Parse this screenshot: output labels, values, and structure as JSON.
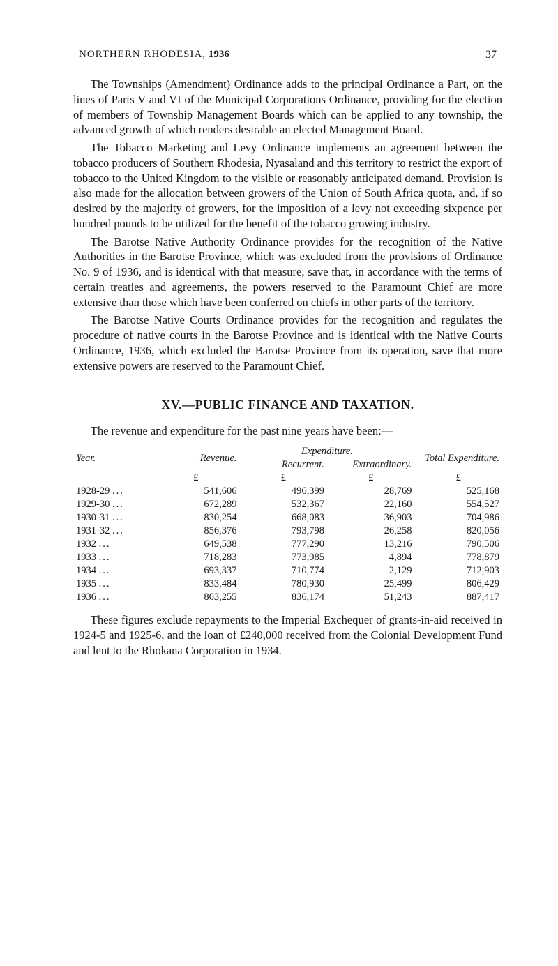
{
  "header": {
    "running_title_caps": "NORTHERN RHODESIA,",
    "running_year": "1936",
    "page_number": "37"
  },
  "paragraphs": {
    "p1": "The Townships (Amendment) Ordinance adds to the principal Ordinance a Part, on the lines of Parts V and VI of the Municipal Corporations Ordinance, providing for the election of members of Township Management Boards which can be applied to any township, the advanced growth of which renders desirable an elected Management Board.",
    "p2": "The Tobacco Marketing and Levy Ordinance implements an agreement between the tobacco producers of Southern Rhodesia, Nyasaland and this territory to restrict the export of tobacco to the United Kingdom to the visible or reasonably anticipated demand. Provision is also made for the allocation between growers of the Union of South Africa quota, and, if so desired by the majority of growers, for the imposition of a levy not exceeding sixpence per hundred pounds to be utilized for the benefit of the tobacco growing industry.",
    "p3": "The Barotse Native Authority Ordinance provides for the recognition of the Native Authorities in the Barotse Province, which was excluded from the provisions of Ordinance No. 9 of 1936, and is identical with that measure, save that, in accordance with the terms of certain treaties and agreements, the powers reserved to the Paramount Chief are more extensive than those which have been conferred on chiefs in other parts of the territory.",
    "p4": "The Barotse Native Courts Ordinance provides for the recognition and regulates the procedure of native courts in the Barotse Province and is identical with the Native Courts Ordinance, 1936, which excluded the Barotse Province from its operation, save that more extensive powers are reserved to the Paramount Chief."
  },
  "section": {
    "heading": "XV.—PUBLIC FINANCE AND TAXATION.",
    "intro": "The revenue and expenditure for the past nine years have been:—"
  },
  "table": {
    "headers": {
      "year": "Year.",
      "revenue": "Revenue.",
      "expenditure": "Expenditure.",
      "recurrent": "Recurrent.",
      "extraordinary": "Extraordinary.",
      "total": "Total Expenditure."
    },
    "pound": "£",
    "rows": [
      {
        "year": "1928-29",
        "revenue": "541,606",
        "recurrent": "496,399",
        "extraordinary": "28,769",
        "total": "525,168"
      },
      {
        "year": "1929-30",
        "revenue": "672,289",
        "recurrent": "532,367",
        "extraordinary": "22,160",
        "total": "554,527"
      },
      {
        "year": "1930-31",
        "revenue": "830,254",
        "recurrent": "668,083",
        "extraordinary": "36,903",
        "total": "704,986"
      },
      {
        "year": "1931-32",
        "revenue": "856,376",
        "recurrent": "793,798",
        "extraordinary": "26,258",
        "total": "820,056"
      },
      {
        "year": "1932",
        "revenue": "649,538",
        "recurrent": "777,290",
        "extraordinary": "13,216",
        "total": "790,506"
      },
      {
        "year": "1933",
        "revenue": "718,283",
        "recurrent": "773,985",
        "extraordinary": "4,894",
        "total": "778,879"
      },
      {
        "year": "1934",
        "revenue": "693,337",
        "recurrent": "710,774",
        "extraordinary": "2,129",
        "total": "712,903"
      },
      {
        "year": "1935",
        "revenue": "833,484",
        "recurrent": "780,930",
        "extraordinary": "25,499",
        "total": "806,429"
      },
      {
        "year": "1936",
        "revenue": "863,255",
        "recurrent": "836,174",
        "extraordinary": "51,243",
        "total": "887,417"
      }
    ]
  },
  "closing": {
    "p": "These figures exclude repayments to the Imperial Exchequer of grants-in-aid received in 1924-5 and 1925-6, and the loan of £240,000 received from the Colonial Development Fund and lent to the Rhokana Corporation in 1934."
  }
}
